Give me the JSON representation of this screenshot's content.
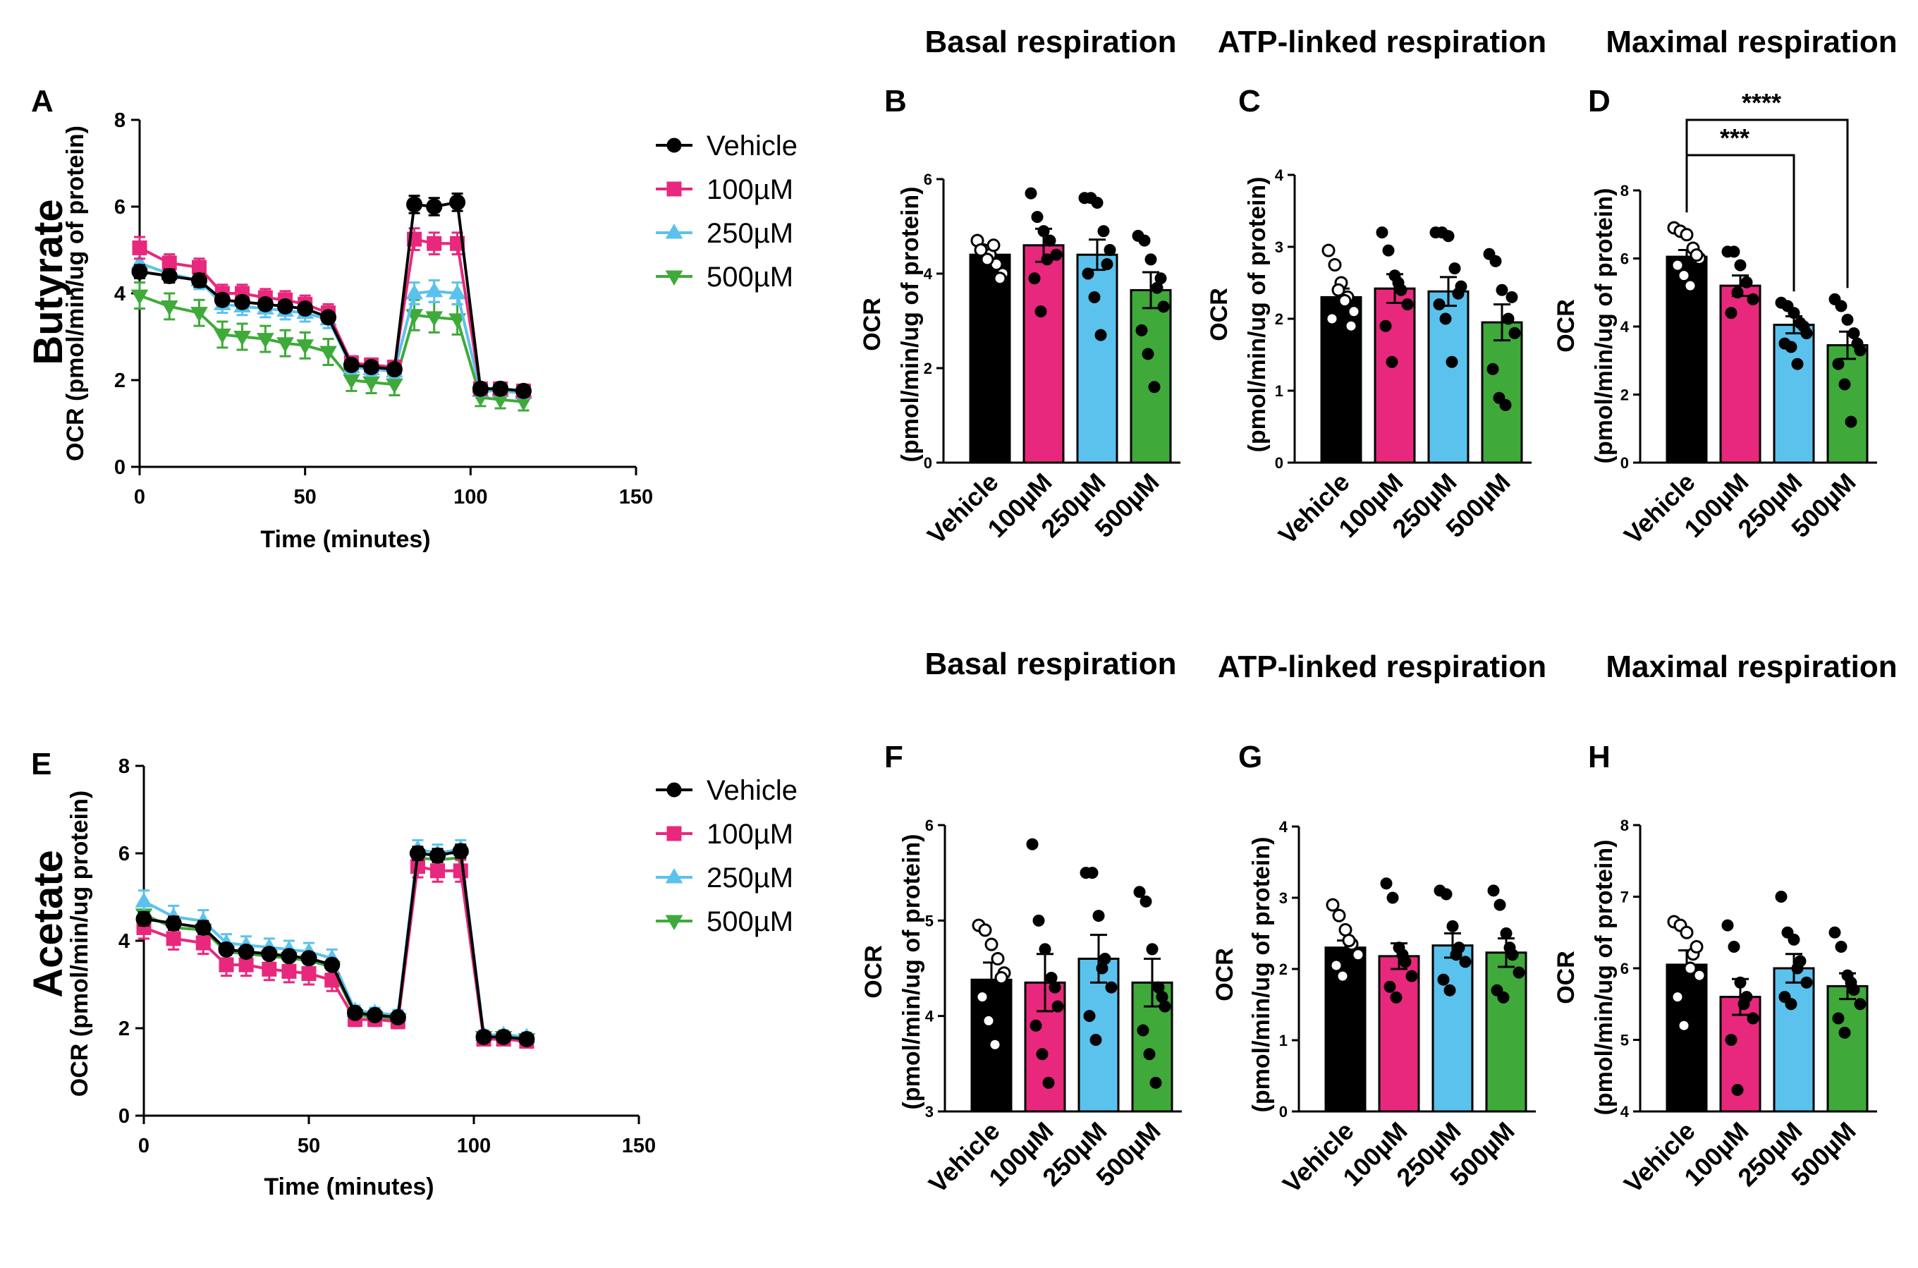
{
  "labels": {
    "butyrate": "Butyrate",
    "acetate": "Acetate",
    "basal": "Basal respiration",
    "atp": "ATP-linked respiration",
    "maximal": "Maximal respiration",
    "basal2": "Basal respiration",
    "atp2": "ATP-linked respiration",
    "maximal2": "Maximal respiration"
  },
  "colors": {
    "Vehicle": "#000000",
    "100µM": "#e8287c",
    "250µM": "#5bc2ee",
    "500µM": "#3faa3a"
  },
  "chart_data": [
    {
      "id": "A",
      "panel": "A",
      "type": "line",
      "ylabel": "OCR (pmol/min/ug of protein)",
      "xlabel": "Time (minutes)",
      "xlim": [
        0,
        150
      ],
      "ylim": [
        0,
        8
      ],
      "xticks": [
        "0",
        "50",
        "100",
        "150"
      ],
      "yticks": [
        "0",
        "2",
        "4",
        "6",
        "8"
      ],
      "x": [
        0,
        9,
        18,
        25,
        31,
        38,
        44,
        50,
        57,
        64,
        70,
        77,
        83,
        89,
        96,
        103,
        109,
        116
      ],
      "series": [
        {
          "name": "Vehicle",
          "marker": "circle",
          "values": [
            4.5,
            4.4,
            4.3,
            3.85,
            3.8,
            3.75,
            3.7,
            3.65,
            3.45,
            2.35,
            2.3,
            2.25,
            6.05,
            6.0,
            6.1,
            1.8,
            1.8,
            1.75
          ],
          "err": [
            0.15,
            0.15,
            0.15,
            0.12,
            0.12,
            0.12,
            0.12,
            0.12,
            0.12,
            0.1,
            0.1,
            0.1,
            0.2,
            0.2,
            0.2,
            0.08,
            0.08,
            0.08
          ]
        },
        {
          "name": "100µM",
          "marker": "square",
          "values": [
            5.05,
            4.7,
            4.6,
            4.0,
            4.0,
            3.9,
            3.85,
            3.75,
            3.55,
            2.4,
            2.35,
            2.3,
            5.25,
            5.15,
            5.15,
            1.8,
            1.8,
            1.75
          ],
          "err": [
            0.25,
            0.2,
            0.2,
            0.2,
            0.2,
            0.2,
            0.2,
            0.2,
            0.2,
            0.15,
            0.15,
            0.15,
            0.25,
            0.25,
            0.25,
            0.1,
            0.1,
            0.1
          ]
        },
        {
          "name": "250µM",
          "marker": "triangle-up",
          "values": [
            4.7,
            4.45,
            4.3,
            3.75,
            3.7,
            3.65,
            3.6,
            3.55,
            3.4,
            2.3,
            2.25,
            2.2,
            4.0,
            4.05,
            4.0,
            1.75,
            1.75,
            1.7
          ],
          "err": [
            0.25,
            0.2,
            0.2,
            0.2,
            0.2,
            0.2,
            0.2,
            0.2,
            0.2,
            0.15,
            0.15,
            0.15,
            0.25,
            0.25,
            0.25,
            0.1,
            0.1,
            0.1
          ]
        },
        {
          "name": "500µM",
          "marker": "triangle-down",
          "values": [
            3.95,
            3.7,
            3.55,
            3.05,
            3.0,
            2.95,
            2.85,
            2.8,
            2.65,
            2.0,
            1.95,
            1.9,
            3.5,
            3.45,
            3.4,
            1.6,
            1.55,
            1.5
          ],
          "err": [
            0.3,
            0.3,
            0.3,
            0.3,
            0.3,
            0.3,
            0.3,
            0.3,
            0.3,
            0.25,
            0.25,
            0.25,
            0.35,
            0.35,
            0.35,
            0.2,
            0.2,
            0.2
          ]
        }
      ]
    },
    {
      "id": "B",
      "panel": "B",
      "type": "bar",
      "title": "Basal respiration",
      "ylabel": "OCR",
      "ylabel2": "(pmol/min/ug of protein)",
      "categories": [
        "Vehicle",
        "100µM",
        "250µM",
        "500µM"
      ],
      "ylim": [
        0,
        6
      ],
      "yticks": [
        "0",
        "2",
        "4",
        "6"
      ],
      "values": [
        4.4,
        4.6,
        4.4,
        3.65
      ],
      "err": [
        0.18,
        0.35,
        0.32,
        0.38
      ],
      "points": [
        [
          4.7,
          4.5,
          4.4,
          4.2,
          4.0,
          4.5,
          4.3,
          4.6,
          3.9
        ],
        [
          5.7,
          5.2,
          4.9,
          4.7,
          4.4,
          3.9,
          3.2,
          4.3
        ],
        [
          5.6,
          5.6,
          5.5,
          4.9,
          4.5,
          4.0,
          3.5,
          2.7,
          4.2
        ],
        [
          4.8,
          4.7,
          4.3,
          3.7,
          3.3,
          2.8,
          2.3,
          1.6,
          3.9
        ]
      ],
      "open_first": true
    },
    {
      "id": "C",
      "panel": "C",
      "type": "bar",
      "title": "ATP-linked respiration",
      "ylabel": "OCR",
      "ylabel2": "(pmol/min/ug of protein)",
      "categories": [
        "Vehicle",
        "100µM",
        "250µM",
        "500µM"
      ],
      "ylim": [
        0,
        4
      ],
      "yticks": [
        "0",
        "1",
        "2",
        "3",
        "4"
      ],
      "values": [
        2.3,
        2.42,
        2.38,
        1.95
      ],
      "err": [
        0.12,
        0.2,
        0.2,
        0.25
      ],
      "points": [
        [
          2.95,
          2.75,
          2.5,
          2.3,
          2.1,
          2.0,
          2.4,
          2.25,
          1.9
        ],
        [
          3.2,
          2.95,
          2.6,
          2.4,
          2.2,
          1.9,
          1.4,
          2.5
        ],
        [
          3.2,
          3.2,
          3.15,
          2.7,
          2.45,
          2.2,
          2.0,
          1.4,
          2.35
        ],
        [
          2.9,
          2.8,
          2.4,
          2.0,
          1.8,
          1.3,
          0.9,
          0.8,
          2.3
        ]
      ],
      "open_first": true
    },
    {
      "id": "D",
      "panel": "D",
      "type": "bar",
      "title": "Maximal respiration",
      "ylabel": "OCR",
      "ylabel2": "(pmol/min/ug of protein)",
      "categories": [
        "Vehicle",
        "100µM",
        "250µM",
        "500µM"
      ],
      "ylim": [
        0,
        8
      ],
      "yticks": [
        "0",
        "2",
        "4",
        "6",
        "8"
      ],
      "values": [
        6.05,
        5.2,
        4.05,
        3.45
      ],
      "err": [
        0.2,
        0.3,
        0.25,
        0.4
      ],
      "points": [
        [
          6.9,
          6.8,
          6.7,
          6.3,
          6.0,
          5.8,
          5.5,
          5.2,
          6.1
        ],
        [
          6.2,
          6.2,
          5.8,
          5.3,
          4.8,
          4.4,
          5.0
        ],
        [
          4.7,
          4.6,
          4.4,
          4.1,
          3.8,
          3.5,
          3.4,
          2.9,
          4.0
        ],
        [
          4.8,
          4.6,
          4.2,
          3.8,
          3.3,
          2.9,
          2.3,
          1.2,
          3.5
        ]
      ],
      "open_first": true,
      "significance": [
        {
          "from": 0,
          "to": 2,
          "label": "***"
        },
        {
          "from": 0,
          "to": 3,
          "label": "****"
        }
      ]
    },
    {
      "id": "E",
      "panel": "E",
      "type": "line",
      "ylabel": "OCR (pmol/min/ug protein)",
      "xlabel": "Time (minutes)",
      "xlim": [
        0,
        150
      ],
      "ylim": [
        0,
        8
      ],
      "xticks": [
        "0",
        "50",
        "100",
        "150"
      ],
      "yticks": [
        "0",
        "2",
        "4",
        "6",
        "8"
      ],
      "x": [
        0,
        9,
        18,
        25,
        31,
        38,
        44,
        50,
        57,
        64,
        70,
        77,
        83,
        89,
        96,
        103,
        109,
        116
      ],
      "series": [
        {
          "name": "Vehicle",
          "marker": "circle",
          "values": [
            4.5,
            4.4,
            4.3,
            3.8,
            3.75,
            3.7,
            3.65,
            3.6,
            3.45,
            2.35,
            2.3,
            2.25,
            6.0,
            5.95,
            6.05,
            1.8,
            1.8,
            1.75
          ],
          "err": [
            0.15,
            0.15,
            0.15,
            0.12,
            0.12,
            0.12,
            0.12,
            0.12,
            0.12,
            0.1,
            0.1,
            0.1,
            0.15,
            0.15,
            0.15,
            0.08,
            0.08,
            0.08
          ]
        },
        {
          "name": "100µM",
          "marker": "square",
          "values": [
            4.3,
            4.05,
            3.95,
            3.45,
            3.45,
            3.35,
            3.3,
            3.25,
            3.1,
            2.2,
            2.2,
            2.15,
            5.7,
            5.6,
            5.6,
            1.75,
            1.75,
            1.7
          ],
          "err": [
            0.25,
            0.25,
            0.25,
            0.25,
            0.25,
            0.25,
            0.25,
            0.25,
            0.25,
            0.15,
            0.15,
            0.15,
            0.25,
            0.25,
            0.25,
            0.1,
            0.1,
            0.1
          ]
        },
        {
          "name": "250µM",
          "marker": "triangle-up",
          "values": [
            4.9,
            4.55,
            4.45,
            3.95,
            3.9,
            3.85,
            3.8,
            3.75,
            3.6,
            2.4,
            2.35,
            2.3,
            6.1,
            6.0,
            6.1,
            1.85,
            1.85,
            1.8
          ],
          "err": [
            0.25,
            0.25,
            0.25,
            0.2,
            0.2,
            0.2,
            0.2,
            0.2,
            0.2,
            0.12,
            0.12,
            0.12,
            0.2,
            0.2,
            0.2,
            0.1,
            0.1,
            0.1
          ]
        },
        {
          "name": "500µM",
          "marker": "triangle-down",
          "values": [
            4.6,
            4.3,
            4.25,
            3.75,
            3.7,
            3.65,
            3.6,
            3.55,
            3.4,
            2.3,
            2.25,
            2.2,
            5.9,
            5.85,
            5.9,
            1.8,
            1.8,
            1.75
          ],
          "err": [
            0.2,
            0.2,
            0.2,
            0.15,
            0.15,
            0.15,
            0.15,
            0.15,
            0.15,
            0.1,
            0.1,
            0.1,
            0.2,
            0.2,
            0.2,
            0.1,
            0.1,
            0.1
          ]
        }
      ]
    },
    {
      "id": "F",
      "panel": "F",
      "type": "bar",
      "title": "Basal respiration",
      "ylabel": "OCR",
      "ylabel2": "(pmol/min/ug of protein)",
      "categories": [
        "Vehicle",
        "100µM",
        "250µM",
        "500µM"
      ],
      "ylim": [
        3,
        6
      ],
      "yticks": [
        "3",
        "4",
        "5",
        "6"
      ],
      "values": [
        4.38,
        4.35,
        4.6,
        4.35
      ],
      "err": [
        0.18,
        0.3,
        0.25,
        0.25
      ],
      "points": [
        [
          4.95,
          4.9,
          4.75,
          4.6,
          4.45,
          4.2,
          3.95,
          3.7,
          4.4
        ],
        [
          5.8,
          5.0,
          4.7,
          4.4,
          4.1,
          3.9,
          3.6,
          3.3,
          4.3
        ],
        [
          5.5,
          5.5,
          5.05,
          4.6,
          4.3,
          4.0,
          3.75,
          4.5
        ],
        [
          5.3,
          5.2,
          4.7,
          4.3,
          4.1,
          3.85,
          3.6,
          3.3,
          4.2
        ]
      ],
      "open_first": true
    },
    {
      "id": "G",
      "panel": "G",
      "type": "bar",
      "title": "ATP-linked respiration",
      "ylabel": "OCR",
      "ylabel2": "(pmol/min/ug of protein)",
      "categories": [
        "Vehicle",
        "100µM",
        "250µM",
        "500µM"
      ],
      "ylim": [
        0,
        4
      ],
      "yticks": [
        "0",
        "1",
        "2",
        "3",
        "4"
      ],
      "values": [
        2.3,
        2.18,
        2.33,
        2.23
      ],
      "err": [
        0.1,
        0.18,
        0.17,
        0.2
      ],
      "points": [
        [
          2.9,
          2.75,
          2.55,
          2.35,
          2.2,
          2.05,
          1.9,
          2.4
        ],
        [
          3.2,
          3.0,
          2.3,
          2.1,
          1.9,
          1.75,
          1.6,
          2.2
        ],
        [
          3.1,
          3.05,
          2.6,
          2.3,
          2.1,
          1.85,
          1.7,
          2.2
        ],
        [
          3.1,
          2.9,
          2.5,
          2.2,
          1.95,
          1.7,
          1.6,
          2.3
        ]
      ],
      "open_first": true
    },
    {
      "id": "H",
      "panel": "H",
      "type": "bar",
      "title": "Maximal respiration",
      "ylabel": "OCR",
      "ylabel2": "(pmol/min/ug of protein)",
      "categories": [
        "Vehicle",
        "100µM",
        "250µM",
        "500µM"
      ],
      "ylim": [
        4,
        8
      ],
      "yticks": [
        "4",
        "5",
        "6",
        "7",
        "8"
      ],
      "values": [
        6.05,
        5.6,
        6.0,
        5.75
      ],
      "err": [
        0.2,
        0.25,
        0.2,
        0.18
      ],
      "points": [
        [
          6.65,
          6.6,
          6.5,
          6.2,
          5.9,
          5.6,
          5.2,
          6.0,
          6.3
        ],
        [
          6.6,
          6.3,
          5.8,
          5.6,
          5.3,
          5.0,
          4.3,
          5.5
        ],
        [
          7.0,
          6.5,
          6.4,
          6.1,
          5.8,
          5.6,
          5.5,
          6.0
        ],
        [
          6.5,
          6.3,
          5.9,
          5.7,
          5.5,
          5.3,
          5.1,
          5.8
        ]
      ],
      "open_first": true
    }
  ]
}
